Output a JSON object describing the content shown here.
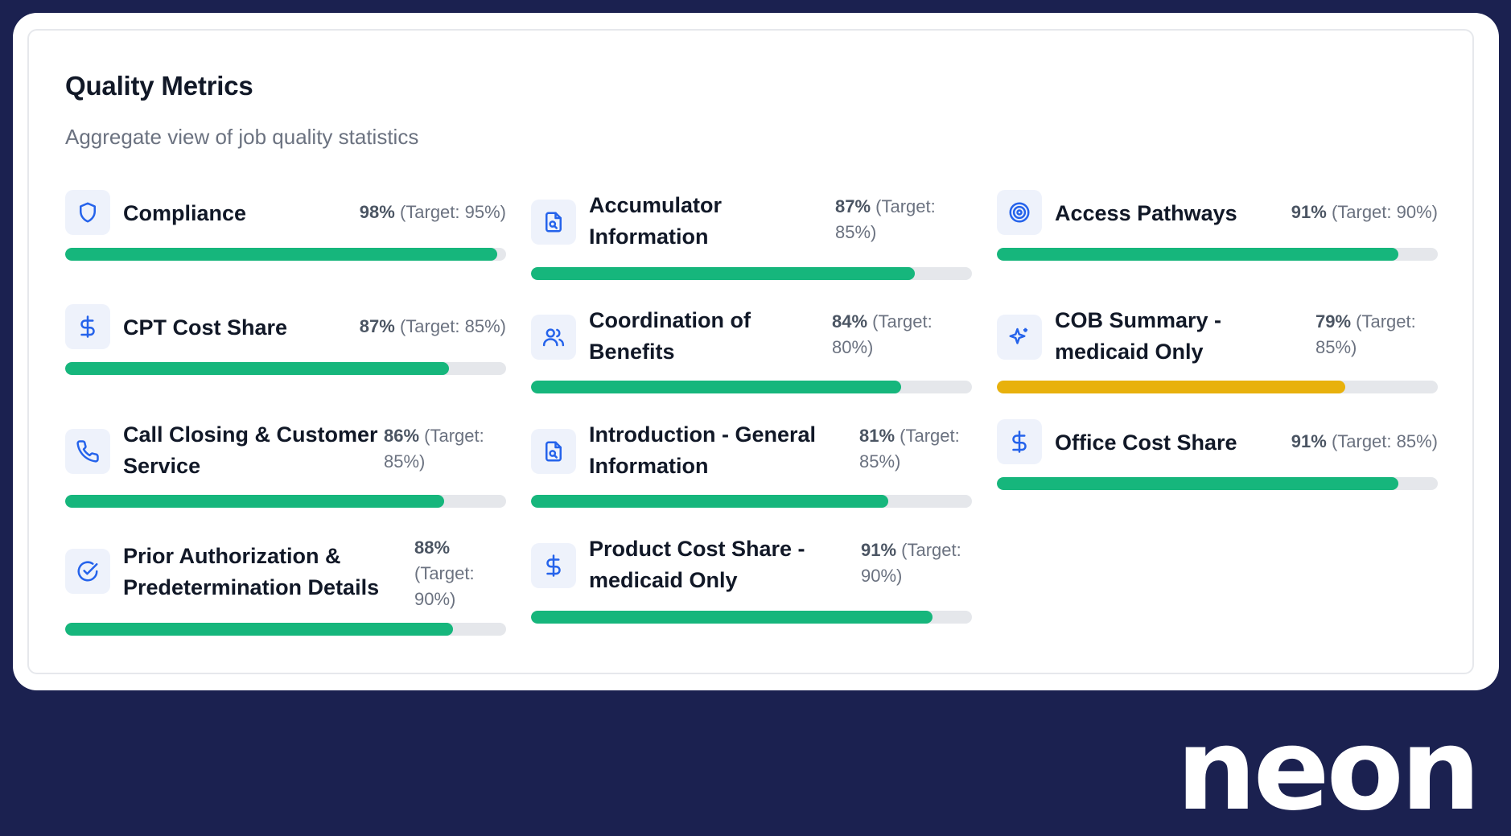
{
  "header": {
    "title": "Quality Metrics",
    "subtitle": "Aggregate view of job quality statistics"
  },
  "metrics": [
    {
      "label": "Compliance",
      "pct": "98%",
      "target": "(Target: 95%)",
      "value": 98,
      "icon": "shield-icon",
      "status": "good"
    },
    {
      "label": "Accumulator Information",
      "pct": "87%",
      "target": "(Target: 85%)",
      "value": 87,
      "icon": "document-search-icon",
      "status": "good"
    },
    {
      "label": "Access Pathways",
      "pct": "91%",
      "target": "(Target: 90%)",
      "value": 91,
      "icon": "target-icon",
      "status": "good"
    },
    {
      "label": "CPT Cost Share",
      "pct": "87%",
      "target": "(Target: 85%)",
      "value": 87,
      "icon": "dollar-icon",
      "status": "good"
    },
    {
      "label": "Coordination of Benefits",
      "pct": "84%",
      "target": "(Target: 80%)",
      "value": 84,
      "icon": "users-icon",
      "status": "good"
    },
    {
      "label": "COB Summary - medicaid Only",
      "pct": "79%",
      "target": "(Target: 85%)",
      "value": 79,
      "icon": "sparkles-icon",
      "status": "warn"
    },
    {
      "label": "Call Closing & Customer Service",
      "pct": "86%",
      "target": "(Target: 85%)",
      "value": 86,
      "icon": "phone-icon",
      "status": "good"
    },
    {
      "label": "Introduction - General Information",
      "pct": "81%",
      "target": "(Target: 85%)",
      "value": 81,
      "icon": "document-search-icon",
      "status": "good"
    },
    {
      "label": "Office Cost Share",
      "pct": "91%",
      "target": "(Target: 85%)",
      "value": 91,
      "icon": "dollar-icon",
      "status": "good"
    },
    {
      "label": "Prior Authorization & Predetermination Details",
      "pct": "88%",
      "target": "(Target: 90%)",
      "value": 88,
      "icon": "check-circle-icon",
      "status": "good"
    },
    {
      "label": "Product Cost Share - medicaid Only",
      "pct": "91%",
      "target": "(Target: 90%)",
      "value": 91,
      "icon": "dollar-icon",
      "status": "good"
    }
  ],
  "colors": {
    "good": "#16b67c",
    "warn": "#e8b10c",
    "icon": "#2563eb"
  },
  "brand": {
    "logo": "neon"
  }
}
